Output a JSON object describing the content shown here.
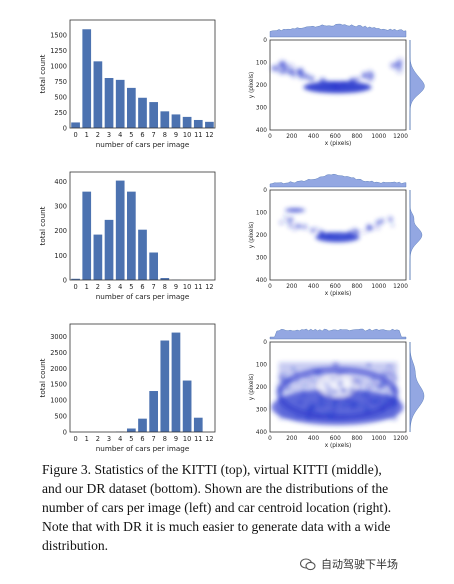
{
  "chart_data": [
    {
      "type": "bar",
      "categories": [
        "0",
        "1",
        "2",
        "3",
        "4",
        "5",
        "6",
        "7",
        "8",
        "9",
        "10",
        "11",
        "12"
      ],
      "values": [
        90,
        1600,
        1080,
        810,
        780,
        650,
        490,
        420,
        270,
        220,
        180,
        130,
        100
      ],
      "xlabel": "number of cars per image",
      "ylabel": "total count",
      "yticks": [
        "0",
        "250",
        "500",
        "750",
        "1000",
        "1250",
        "1500"
      ],
      "ylim": [
        0,
        1750
      ],
      "color": "#4c72b0",
      "grid": false
    },
    {
      "type": "heatmap",
      "xlabel": "x (pixels)",
      "ylabel": "y (pixels)",
      "xticks": [
        "0",
        "200",
        "400",
        "600",
        "800",
        "1000",
        "1200"
      ],
      "yticks": [
        "0",
        "100",
        "200",
        "300",
        "400"
      ],
      "xlim": [
        0,
        1250
      ],
      "ylim": [
        0,
        400
      ],
      "color": "#2233cc",
      "marginals": true
    },
    {
      "type": "bar",
      "categories": [
        "0",
        "1",
        "2",
        "3",
        "4",
        "5",
        "6",
        "7",
        "8",
        "9",
        "10",
        "11",
        "12"
      ],
      "values": [
        5,
        360,
        185,
        245,
        405,
        360,
        205,
        112,
        8,
        1,
        0,
        0,
        0
      ],
      "xlabel": "number of cars per image",
      "ylabel": "total count",
      "yticks": [
        "0",
        "100",
        "200",
        "300",
        "400"
      ],
      "ylim": [
        0,
        440
      ],
      "color": "#4c72b0",
      "grid": false
    },
    {
      "type": "heatmap",
      "xlabel": "x (pixels)",
      "ylabel": "y (pixels)",
      "xticks": [
        "0",
        "200",
        "400",
        "600",
        "800",
        "1000",
        "1200"
      ],
      "yticks": [
        "0",
        "100",
        "200",
        "300",
        "400"
      ],
      "xlim": [
        0,
        1250
      ],
      "ylim": [
        0,
        400
      ],
      "color": "#2233cc",
      "marginals": true
    },
    {
      "type": "bar",
      "categories": [
        "0",
        "1",
        "2",
        "3",
        "4",
        "5",
        "6",
        "7",
        "8",
        "9",
        "10",
        "11",
        "12"
      ],
      "values": [
        0,
        0,
        0,
        0,
        10,
        110,
        420,
        1290,
        2880,
        3130,
        1620,
        450,
        0
      ],
      "xlabel": "number of cars per image",
      "ylabel": "total count",
      "yticks": [
        "0",
        "500",
        "1000",
        "1500",
        "2000",
        "2500",
        "3000"
      ],
      "ylim": [
        0,
        3400
      ],
      "color": "#4c72b0",
      "grid": false
    },
    {
      "type": "heatmap",
      "xlabel": "x (pixels)",
      "ylabel": "y (pixels)",
      "xticks": [
        "0",
        "200",
        "400",
        "600",
        "800",
        "1000",
        "1200"
      ],
      "yticks": [
        "0",
        "100",
        "200",
        "300",
        "400"
      ],
      "xlim": [
        0,
        1250
      ],
      "ylim": [
        0,
        400
      ],
      "color": "#2233cc",
      "marginals": true
    }
  ],
  "caption": {
    "line1": "Figure 3. Statistics of the KITTI (top), virtual KITTI (middle),",
    "line2": "and our DR dataset (bottom). Shown are the distributions of the",
    "line3": "number of cars per image (left) and car centroid location (right).",
    "line4": "Note that with DR it is much easier to generate data with a wide",
    "line5": "distribution."
  },
  "watermark": {
    "text": "自动驾驶下半场",
    "icon": "wechat-icon"
  }
}
